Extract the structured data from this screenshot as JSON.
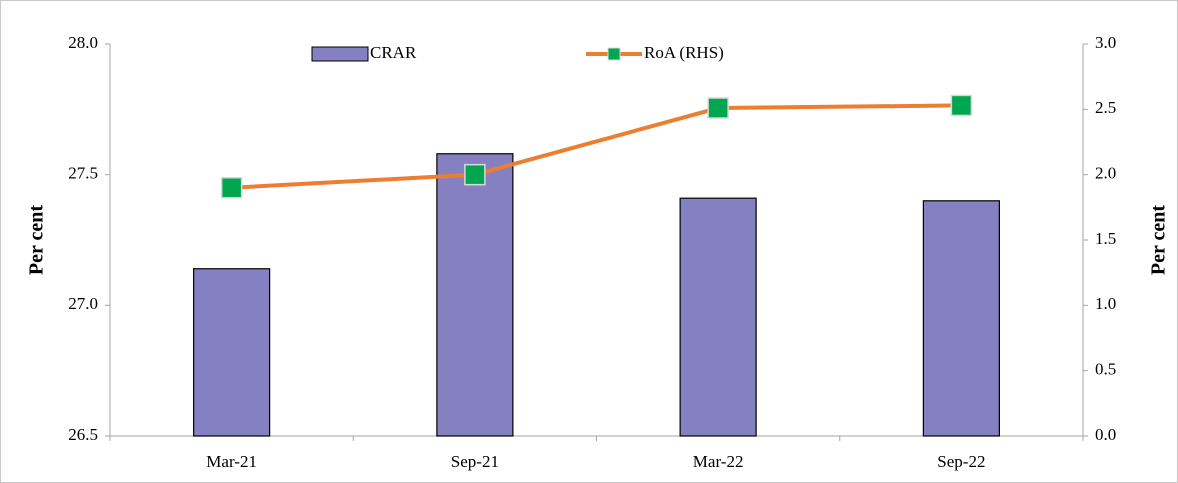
{
  "chart_data": {
    "type": "bar_line",
    "categories": [
      "Mar-21",
      "Sep-21",
      "Mar-22",
      "Sep-22"
    ],
    "series": [
      {
        "name": "CRAR",
        "type": "bar",
        "color": "#8580c2",
        "values": [
          27.14,
          27.58,
          27.41,
          27.4
        ]
      },
      {
        "name": "RoA (RHS)",
        "type": "line",
        "axis": "y2",
        "color": "#ed7d31",
        "marker_color": "#00a650",
        "values": [
          1.9,
          2.0,
          2.51,
          2.53
        ]
      }
    ],
    "ylabel": "Per cent",
    "y2label": "Per cent",
    "ylim": [
      26.5,
      28.0
    ],
    "yticks": [
      27.5,
      26.5,
      {
        "value": 27.0,
        "label": "27.0"
      },
      {
        "value": 28.0,
        "label": "28.0"
      }
    ],
    "y2lim": [
      0.0,
      3.0
    ],
    "y2ticks": [
      {
        "value": 0.0,
        "label": "0.0"
      },
      0.5,
      {
        "value": 1.0,
        "label": "1.0"
      },
      1.5,
      {
        "value": 2.0,
        "label": "2.0"
      },
      2.5,
      {
        "value": 3.0,
        "label": "3.0"
      }
    ],
    "legend": "top"
  }
}
